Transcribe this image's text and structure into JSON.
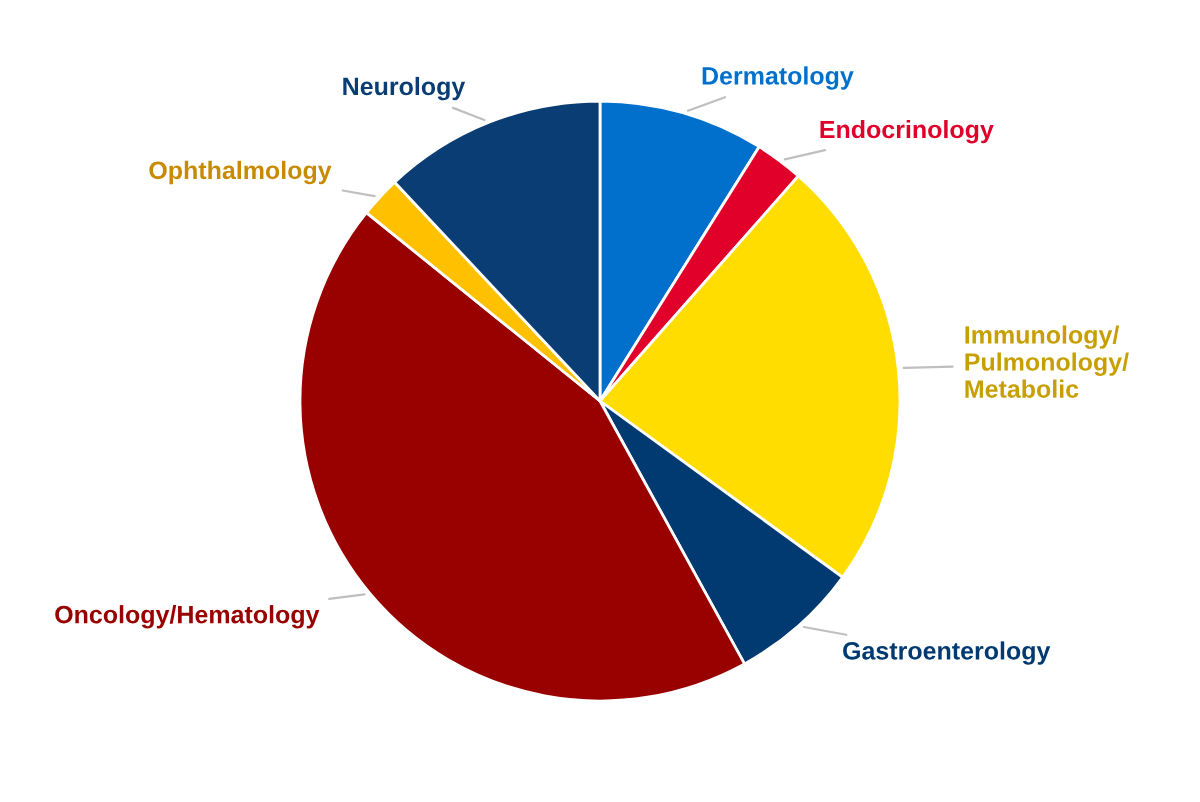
{
  "chart_data": {
    "type": "pie",
    "categories": [
      "Dermatology",
      "Endocrinology",
      "Immunology/\nPulmonology/\nMetabolic",
      "Gastroenterology",
      "Oncology/Hematology",
      "Ophthalmology",
      "Neurology"
    ],
    "values": [
      8.9,
      2.6,
      23.5,
      7,
      43.8,
      2.2,
      12
    ],
    "colors": [
      "#0070cc",
      "#e0002a",
      "#ffdd00",
      "#003a70",
      "#990000",
      "#ffc000",
      "#0a3d74"
    ],
    "legend": false
  }
}
